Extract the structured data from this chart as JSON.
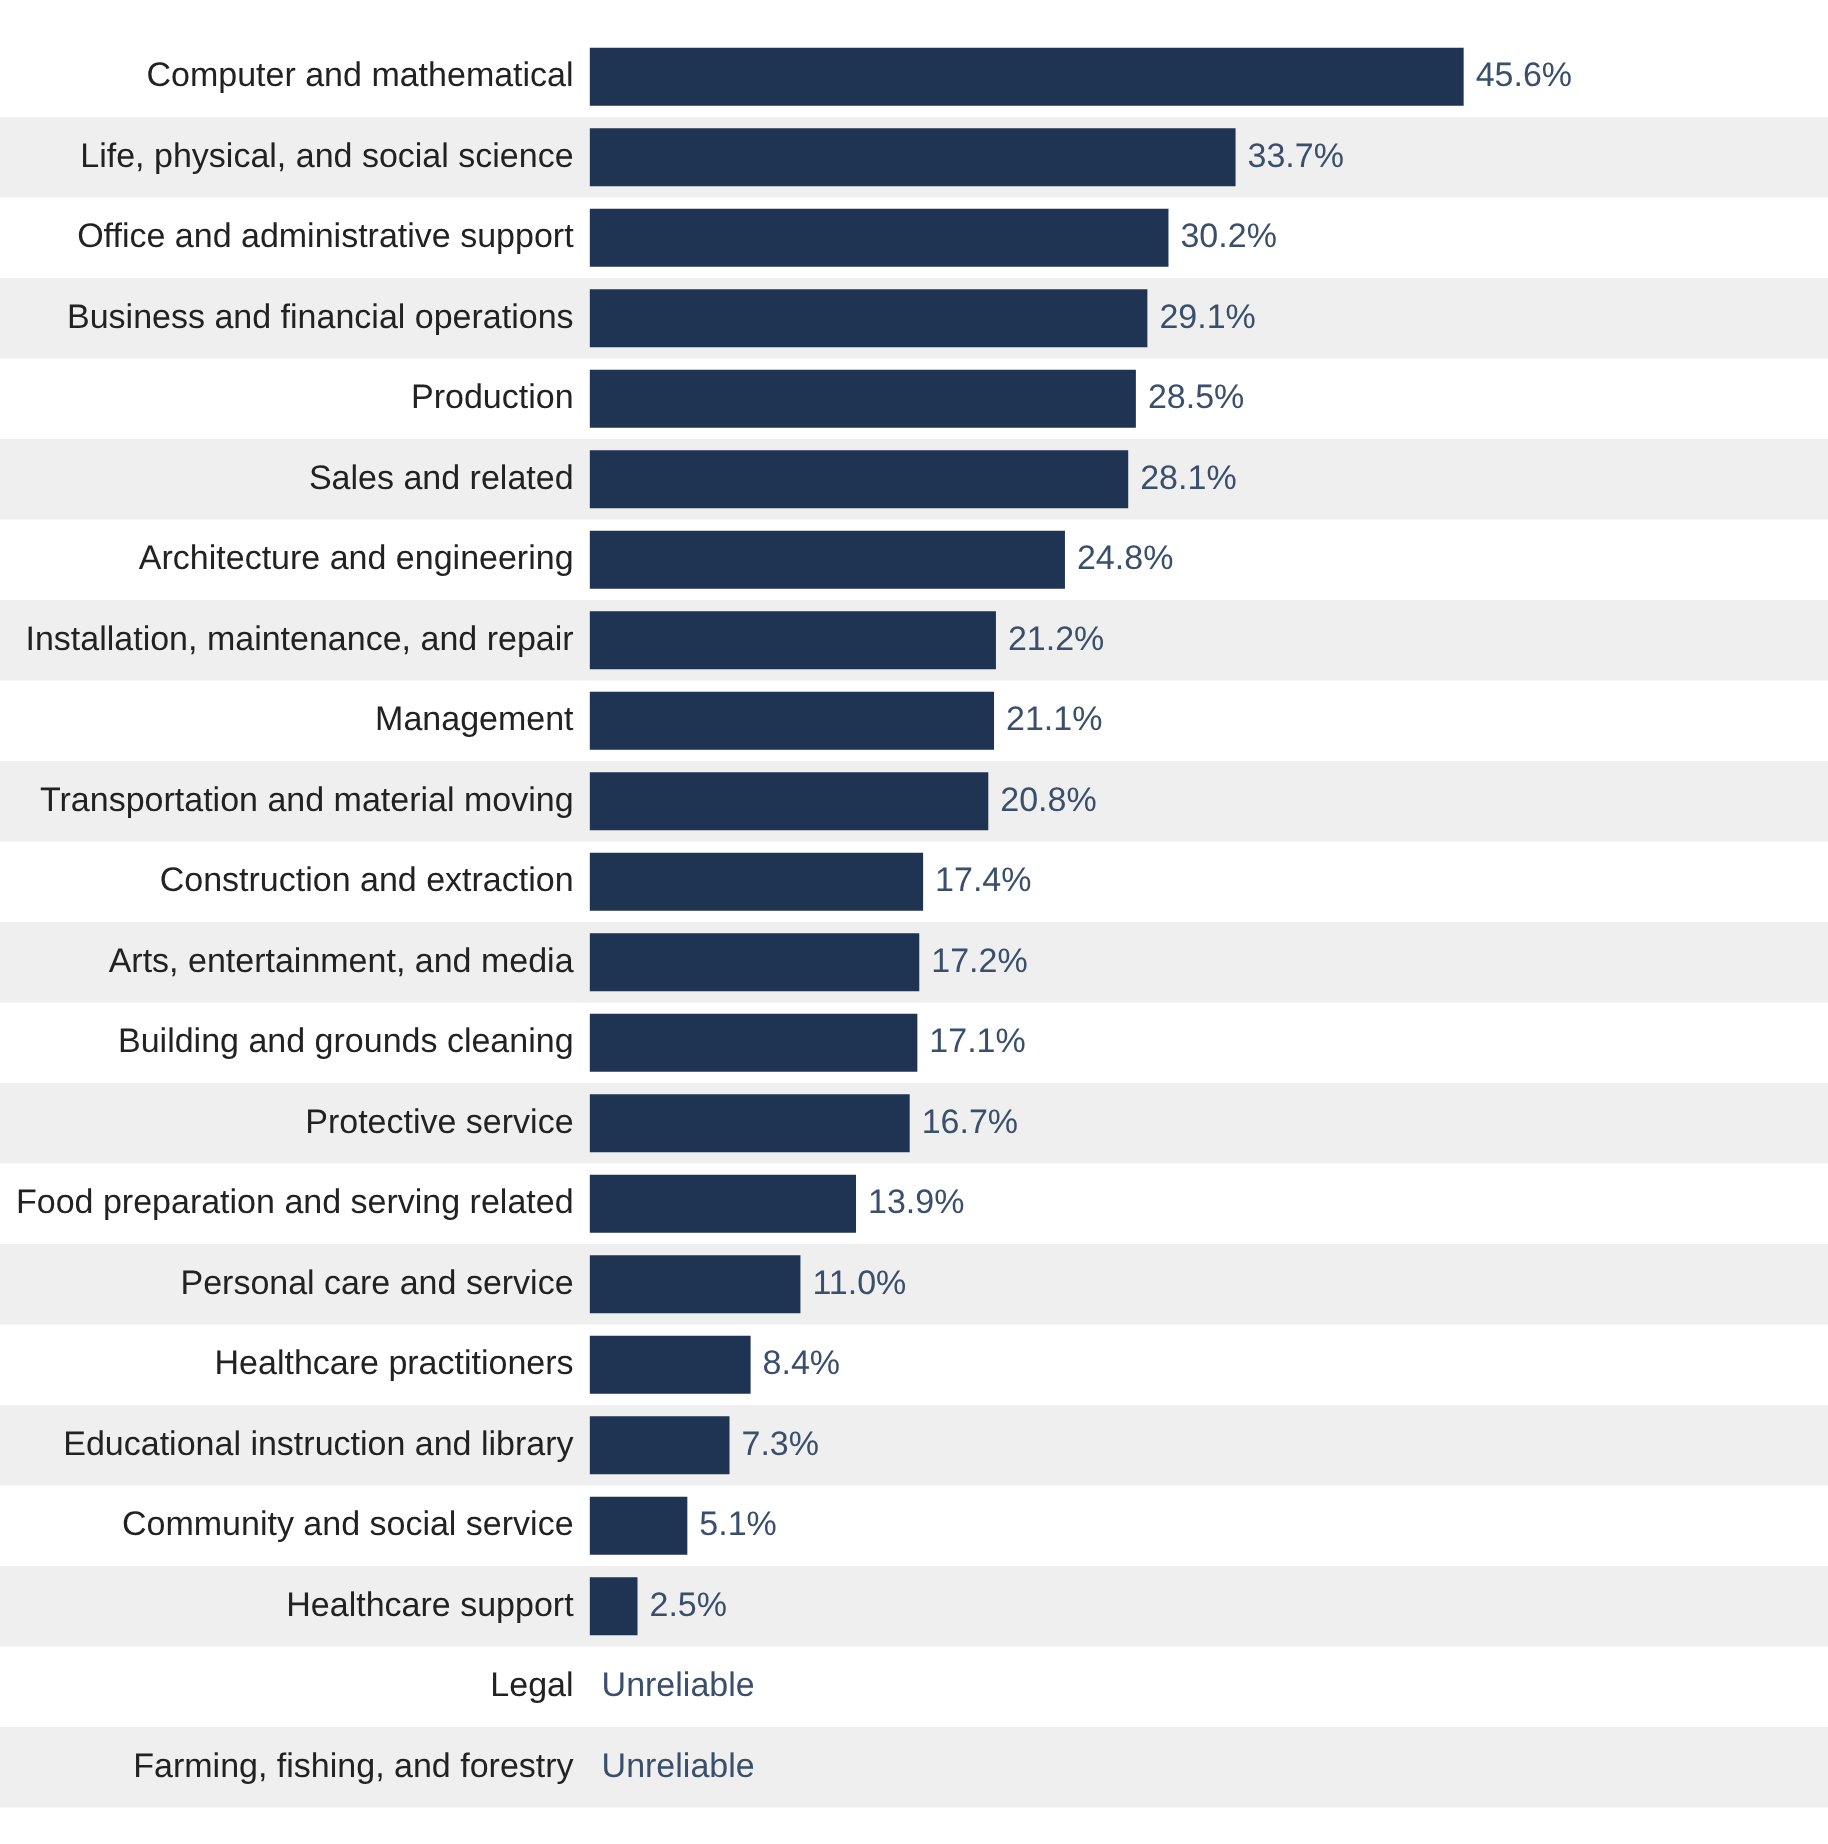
{
  "chart_data": {
    "type": "bar",
    "orientation": "horizontal",
    "categories": [
      "Computer and mathematical",
      "Life, physical, and social science",
      "Office and administrative support",
      "Business and financial operations",
      "Production",
      "Sales and related",
      "Architecture and engineering",
      "Installation, maintenance, and repair",
      "Management",
      "Transportation and material moving",
      "Construction and extraction",
      "Arts, entertainment, and media",
      "Building and grounds cleaning",
      "Protective service",
      "Food preparation and serving related",
      "Personal care and service",
      "Healthcare practitioners",
      "Educational instruction and library",
      "Community and social service",
      "Healthcare support",
      "Legal",
      "Farming, fishing, and forestry"
    ],
    "values": [
      45.6,
      33.7,
      30.2,
      29.1,
      28.5,
      28.1,
      24.8,
      21.2,
      21.1,
      20.8,
      17.4,
      17.2,
      17.1,
      16.7,
      13.9,
      11.0,
      8.4,
      7.3,
      5.1,
      2.5,
      null,
      null
    ],
    "value_labels": [
      "45.6%",
      "33.7%",
      "30.2%",
      "29.1%",
      "28.5%",
      "28.1%",
      "24.8%",
      "21.2%",
      "21.1%",
      "20.8%",
      "17.4%",
      "17.2%",
      "17.1%",
      "16.7%",
      "13.9%",
      "11.0%",
      "8.4%",
      "7.3%",
      "5.1%",
      "2.5%",
      "Unreliable",
      "Unreliable"
    ],
    "color": "#1f3352",
    "grid": false,
    "legend": false
  }
}
